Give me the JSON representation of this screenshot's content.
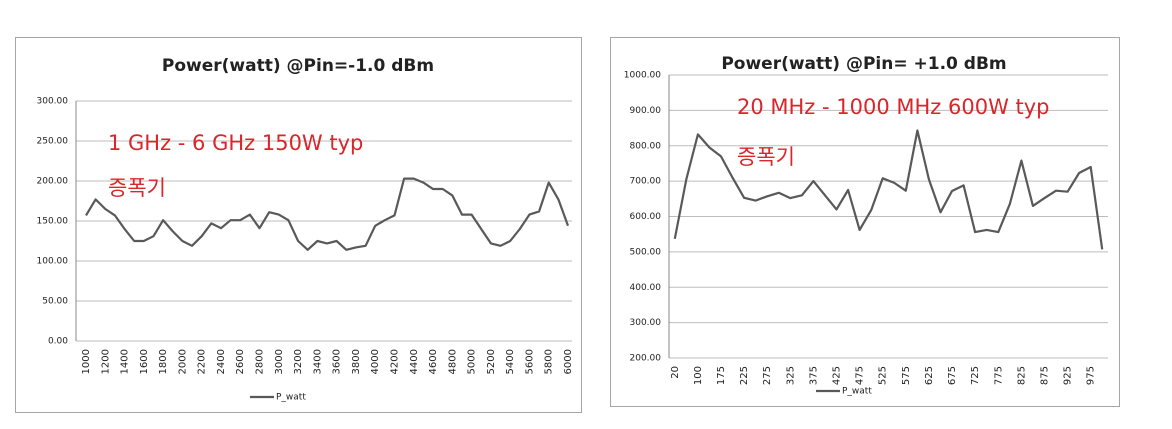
{
  "chart_data": [
    {
      "type": "line",
      "title": "Power(watt) @Pin=-1.0 dBm",
      "annotations": [
        "1 GHz - 6 GHz 150W typ",
        "증폭기"
      ],
      "x": [
        1000,
        1100,
        1200,
        1300,
        1400,
        1500,
        1600,
        1700,
        1800,
        1900,
        2000,
        2100,
        2200,
        2300,
        2400,
        2500,
        2600,
        2700,
        2800,
        2900,
        3000,
        3100,
        3200,
        3300,
        3400,
        3500,
        3600,
        3700,
        3800,
        3900,
        4000,
        4100,
        4200,
        4300,
        4400,
        4500,
        4600,
        4700,
        4800,
        4900,
        5000,
        5100,
        5200,
        5300,
        5400,
        5500,
        5600,
        5700,
        5800,
        5900,
        6000
      ],
      "xlim": [
        1000,
        6000
      ],
      "xticks": [
        1000,
        1200,
        1400,
        1600,
        1800,
        2000,
        2200,
        2400,
        2600,
        2800,
        3000,
        3200,
        3400,
        3600,
        3800,
        4000,
        4200,
        4400,
        4600,
        4800,
        5000,
        5200,
        5400,
        5600,
        5800,
        6000
      ],
      "series": [
        {
          "name": "P_watt",
          "color": "#595959",
          "values": [
            157,
            177,
            165,
            157,
            140,
            125,
            125,
            131,
            151,
            137,
            125,
            119,
            131,
            147,
            141,
            151,
            151,
            158,
            141,
            161,
            158,
            151,
            125,
            114,
            125,
            122,
            125,
            114,
            117,
            119,
            144,
            151,
            157,
            203,
            203,
            198,
            190,
            190,
            182,
            158,
            158,
            140,
            122,
            119,
            125,
            140,
            158,
            162,
            198,
            177,
            144
          ]
        }
      ],
      "ylim": [
        0,
        300
      ],
      "yticks": [
        {
          "value": 0,
          "label": "0.00"
        },
        {
          "value": 50,
          "label": "50.00"
        },
        {
          "value": 100,
          "label": "100.00"
        },
        {
          "value": 150,
          "label": "150.00"
        },
        {
          "value": 200,
          "label": "200.00"
        },
        {
          "value": 250,
          "label": "250.00"
        },
        {
          "value": 300,
          "label": "300.00"
        }
      ],
      "grid": true,
      "legend": "bottom"
    },
    {
      "type": "line",
      "title": "Power(watt) @Pin=  +1.0 dBm",
      "annotations": [
        "20 MHz - 1000 MHz 600W typ",
        "증폭기"
      ],
      "categories": [
        "20",
        null,
        "100",
        null,
        "175",
        null,
        "225",
        null,
        "275",
        null,
        "325",
        null,
        "375",
        null,
        "425",
        null,
        "475",
        null,
        "525",
        null,
        "575",
        null,
        "625",
        null,
        "675",
        null,
        "725",
        null,
        "775",
        null,
        "825",
        null,
        "875",
        null,
        "925",
        null,
        "975",
        null
      ],
      "series": [
        {
          "name": "P_watt",
          "color": "#595959",
          "values": [
            537,
            705,
            832,
            795,
            770,
            710,
            653,
            645,
            657,
            667,
            652,
            660,
            700,
            660,
            620,
            675,
            562,
            618,
            708,
            695,
            673,
            843,
            705,
            612,
            672,
            688,
            556,
            562,
            556,
            635,
            758,
            630,
            652,
            673,
            670,
            723,
            740,
            507
          ]
        }
      ],
      "ylim": [
        200,
        1000
      ],
      "yticks": [
        {
          "value": 200,
          "label": "200.00"
        },
        {
          "value": 300,
          "label": "300.00"
        },
        {
          "value": 400,
          "label": "400.00"
        },
        {
          "value": 500,
          "label": "500.00"
        },
        {
          "value": 600,
          "label": "600.00"
        },
        {
          "value": 700,
          "label": "700.00"
        },
        {
          "value": 800,
          "label": "800.00"
        },
        {
          "value": 900,
          "label": "900.00"
        },
        {
          "value": 1000,
          "label": "1000.00"
        }
      ],
      "grid": true,
      "legend": "bottom"
    }
  ]
}
